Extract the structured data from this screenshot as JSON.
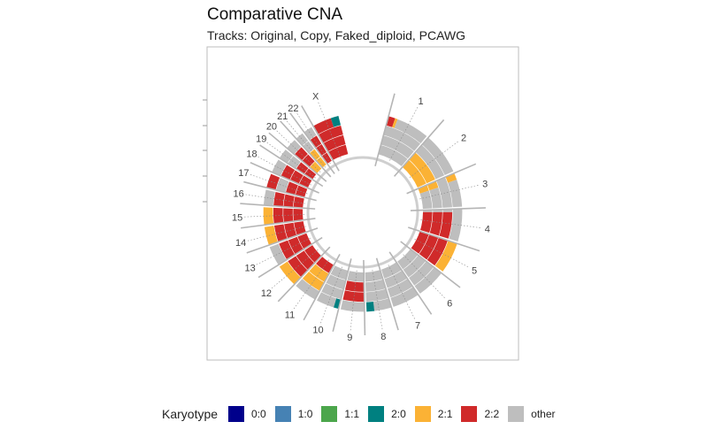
{
  "chart_data": {
    "type": "circular",
    "title": "Comparative CNA",
    "subtitle": "Tracks: Original, Copy, Faked_diploid, PCAWG",
    "tracks": [
      "Original",
      "Copy",
      "Faked_diploid",
      "PCAWG"
    ],
    "chromosomes": [
      {
        "label": "1",
        "size": 249
      },
      {
        "label": "2",
        "size": 243
      },
      {
        "label": "3",
        "size": 198
      },
      {
        "label": "4",
        "size": 191
      },
      {
        "label": "5",
        "size": 181
      },
      {
        "label": "6",
        "size": 171
      },
      {
        "label": "7",
        "size": 159
      },
      {
        "label": "8",
        "size": 145
      },
      {
        "label": "9",
        "size": 138
      },
      {
        "label": "10",
        "size": 134
      },
      {
        "label": "11",
        "size": 135
      },
      {
        "label": "12",
        "size": 133
      },
      {
        "label": "13",
        "size": 114
      },
      {
        "label": "14",
        "size": 107
      },
      {
        "label": "15",
        "size": 102
      },
      {
        "label": "16",
        "size": 90
      },
      {
        "label": "17",
        "size": 83
      },
      {
        "label": "18",
        "size": 80
      },
      {
        "label": "19",
        "size": 59
      },
      {
        "label": "20",
        "size": 64
      },
      {
        "label": "21",
        "size": 47
      },
      {
        "label": "22",
        "size": 51
      },
      {
        "label": "X",
        "size": 156
      }
    ],
    "segments": [
      {
        "track": 3,
        "chr": "1",
        "start": 0,
        "end": 40,
        "karyotype": "2:2"
      },
      {
        "track": 3,
        "chr": "1",
        "start": 40,
        "end": 55,
        "karyotype": "2:1"
      },
      {
        "track": 3,
        "chr": "1",
        "start": 55,
        "end": 249,
        "karyotype": "other"
      },
      {
        "track": 2,
        "chr": "1",
        "start": 0,
        "end": 249,
        "karyotype": "other"
      },
      {
        "track": 1,
        "chr": "1",
        "start": 0,
        "end": 249,
        "karyotype": "other"
      },
      {
        "track": 0,
        "chr": "1",
        "start": 0,
        "end": 249,
        "karyotype": "other"
      },
      {
        "track": 3,
        "chr": "2",
        "start": 0,
        "end": 243,
        "karyotype": "other"
      },
      {
        "track": 2,
        "chr": "2",
        "start": 0,
        "end": 243,
        "karyotype": "other"
      },
      {
        "track": 1,
        "chr": "2",
        "start": 0,
        "end": 243,
        "karyotype": "2:1"
      },
      {
        "track": 0,
        "chr": "2",
        "start": 0,
        "end": 243,
        "karyotype": "2:1"
      },
      {
        "track": 3,
        "chr": "3",
        "start": 0,
        "end": 40,
        "karyotype": "2:1"
      },
      {
        "track": 3,
        "chr": "3",
        "start": 40,
        "end": 198,
        "karyotype": "other"
      },
      {
        "track": 2,
        "chr": "3",
        "start": 0,
        "end": 198,
        "karyotype": "other"
      },
      {
        "track": 1,
        "chr": "3",
        "start": 0,
        "end": 50,
        "karyotype": "2:1"
      },
      {
        "track": 1,
        "chr": "3",
        "start": 50,
        "end": 198,
        "karyotype": "other"
      },
      {
        "track": 0,
        "chr": "3",
        "start": 0,
        "end": 50,
        "karyotype": "2:1"
      },
      {
        "track": 0,
        "chr": "3",
        "start": 50,
        "end": 198,
        "karyotype": "other"
      },
      {
        "track": 3,
        "chr": "4",
        "start": 0,
        "end": 191,
        "karyotype": "other"
      },
      {
        "track": 2,
        "chr": "4",
        "start": 0,
        "end": 20,
        "karyotype": "other"
      },
      {
        "track": 2,
        "chr": "4",
        "start": 20,
        "end": 191,
        "karyotype": "2:2"
      },
      {
        "track": 1,
        "chr": "4",
        "start": 0,
        "end": 20,
        "karyotype": "other"
      },
      {
        "track": 1,
        "chr": "4",
        "start": 20,
        "end": 191,
        "karyotype": "2:2"
      },
      {
        "track": 0,
        "chr": "4",
        "start": 0,
        "end": 20,
        "karyotype": "other"
      },
      {
        "track": 0,
        "chr": "4",
        "start": 20,
        "end": 191,
        "karyotype": "2:2"
      },
      {
        "track": 3,
        "chr": "5",
        "start": 0,
        "end": 181,
        "karyotype": "2:1"
      },
      {
        "track": 2,
        "chr": "5",
        "start": 0,
        "end": 181,
        "karyotype": "2:2"
      },
      {
        "track": 1,
        "chr": "5",
        "start": 0,
        "end": 181,
        "karyotype": "2:2"
      },
      {
        "track": 0,
        "chr": "5",
        "start": 0,
        "end": 181,
        "karyotype": "2:2"
      },
      {
        "track": 3,
        "chr": "6",
        "start": 0,
        "end": 171,
        "karyotype": "other"
      },
      {
        "track": 2,
        "chr": "6",
        "start": 0,
        "end": 171,
        "karyotype": "other"
      },
      {
        "track": 1,
        "chr": "6",
        "start": 0,
        "end": 171,
        "karyotype": "other"
      },
      {
        "track": 0,
        "chr": "6",
        "start": 0,
        "end": 171,
        "karyotype": "other"
      },
      {
        "track": 3,
        "chr": "7",
        "start": 0,
        "end": 159,
        "karyotype": "other"
      },
      {
        "track": 2,
        "chr": "7",
        "start": 0,
        "end": 159,
        "karyotype": "other"
      },
      {
        "track": 1,
        "chr": "7",
        "start": 0,
        "end": 159,
        "karyotype": "other"
      },
      {
        "track": 0,
        "chr": "7",
        "start": 0,
        "end": 159,
        "karyotype": "other"
      },
      {
        "track": 3,
        "chr": "8",
        "start": 0,
        "end": 100,
        "karyotype": "other"
      },
      {
        "track": 3,
        "chr": "8",
        "start": 100,
        "end": 145,
        "karyotype": "2:0"
      },
      {
        "track": 2,
        "chr": "8",
        "start": 0,
        "end": 145,
        "karyotype": "other"
      },
      {
        "track": 1,
        "chr": "8",
        "start": 0,
        "end": 145,
        "karyotype": "other"
      },
      {
        "track": 0,
        "chr": "8",
        "start": 0,
        "end": 145,
        "karyotype": "other"
      },
      {
        "track": 3,
        "chr": "9",
        "start": 0,
        "end": 138,
        "karyotype": "other"
      },
      {
        "track": 2,
        "chr": "9",
        "start": 0,
        "end": 138,
        "karyotype": "2:2"
      },
      {
        "track": 1,
        "chr": "9",
        "start": 0,
        "end": 138,
        "karyotype": "2:2"
      },
      {
        "track": 0,
        "chr": "9",
        "start": 0,
        "end": 138,
        "karyotype": "other"
      },
      {
        "track": 3,
        "chr": "10",
        "start": 0,
        "end": 30,
        "karyotype": "2:0"
      },
      {
        "track": 3,
        "chr": "10",
        "start": 30,
        "end": 134,
        "karyotype": "other"
      },
      {
        "track": 2,
        "chr": "10",
        "start": 0,
        "end": 134,
        "karyotype": "other"
      },
      {
        "track": 1,
        "chr": "10",
        "start": 0,
        "end": 134,
        "karyotype": "other"
      },
      {
        "track": 0,
        "chr": "10",
        "start": 0,
        "end": 134,
        "karyotype": "other"
      },
      {
        "track": 3,
        "chr": "11",
        "start": 0,
        "end": 135,
        "karyotype": "other"
      },
      {
        "track": 2,
        "chr": "11",
        "start": 0,
        "end": 135,
        "karyotype": "2:1"
      },
      {
        "track": 1,
        "chr": "11",
        "start": 0,
        "end": 135,
        "karyotype": "2:1"
      },
      {
        "track": 0,
        "chr": "11",
        "start": 0,
        "end": 135,
        "karyotype": "2:2"
      },
      {
        "track": 3,
        "chr": "12",
        "start": 0,
        "end": 133,
        "karyotype": "2:1"
      },
      {
        "track": 2,
        "chr": "12",
        "start": 0,
        "end": 133,
        "karyotype": "2:2"
      },
      {
        "track": 1,
        "chr": "12",
        "start": 0,
        "end": 133,
        "karyotype": "2:2"
      },
      {
        "track": 0,
        "chr": "12",
        "start": 0,
        "end": 133,
        "karyotype": "2:2"
      },
      {
        "track": 3,
        "chr": "13",
        "start": 0,
        "end": 114,
        "karyotype": "other"
      },
      {
        "track": 2,
        "chr": "13",
        "start": 0,
        "end": 114,
        "karyotype": "2:2"
      },
      {
        "track": 1,
        "chr": "13",
        "start": 0,
        "end": 114,
        "karyotype": "2:2"
      },
      {
        "track": 0,
        "chr": "13",
        "start": 0,
        "end": 114,
        "karyotype": "2:2"
      },
      {
        "track": 3,
        "chr": "14",
        "start": 0,
        "end": 107,
        "karyotype": "2:1"
      },
      {
        "track": 2,
        "chr": "14",
        "start": 0,
        "end": 107,
        "karyotype": "2:2"
      },
      {
        "track": 1,
        "chr": "14",
        "start": 0,
        "end": 107,
        "karyotype": "2:2"
      },
      {
        "track": 0,
        "chr": "14",
        "start": 0,
        "end": 107,
        "karyotype": "2:2"
      },
      {
        "track": 3,
        "chr": "15",
        "start": 0,
        "end": 102,
        "karyotype": "2:1"
      },
      {
        "track": 2,
        "chr": "15",
        "start": 0,
        "end": 102,
        "karyotype": "2:2"
      },
      {
        "track": 1,
        "chr": "15",
        "start": 0,
        "end": 102,
        "karyotype": "2:2"
      },
      {
        "track": 0,
        "chr": "15",
        "start": 0,
        "end": 102,
        "karyotype": "2:2"
      },
      {
        "track": 3,
        "chr": "16",
        "start": 0,
        "end": 90,
        "karyotype": "other"
      },
      {
        "track": 2,
        "chr": "16",
        "start": 0,
        "end": 90,
        "karyotype": "2:2"
      },
      {
        "track": 1,
        "chr": "16",
        "start": 0,
        "end": 90,
        "karyotype": "2:2"
      },
      {
        "track": 0,
        "chr": "16",
        "start": 0,
        "end": 90,
        "karyotype": "2:2"
      },
      {
        "track": 3,
        "chr": "17",
        "start": 0,
        "end": 83,
        "karyotype": "2:2"
      },
      {
        "track": 2,
        "chr": "17",
        "start": 0,
        "end": 83,
        "karyotype": "other"
      },
      {
        "track": 1,
        "chr": "17",
        "start": 0,
        "end": 83,
        "karyotype": "2:2"
      },
      {
        "track": 0,
        "chr": "17",
        "start": 0,
        "end": 83,
        "karyotype": "2:2"
      },
      {
        "track": 3,
        "chr": "18",
        "start": 0,
        "end": 80,
        "karyotype": "other"
      },
      {
        "track": 2,
        "chr": "18",
        "start": 0,
        "end": 80,
        "karyotype": "2:2"
      },
      {
        "track": 1,
        "chr": "18",
        "start": 0,
        "end": 80,
        "karyotype": "2:2"
      },
      {
        "track": 0,
        "chr": "18",
        "start": 0,
        "end": 80,
        "karyotype": "2:2"
      },
      {
        "track": 3,
        "chr": "19",
        "start": 0,
        "end": 59,
        "karyotype": "other"
      },
      {
        "track": 2,
        "chr": "19",
        "start": 0,
        "end": 59,
        "karyotype": "other"
      },
      {
        "track": 1,
        "chr": "19",
        "start": 0,
        "end": 59,
        "karyotype": "2:2"
      },
      {
        "track": 0,
        "chr": "19",
        "start": 0,
        "end": 59,
        "karyotype": "2:2"
      },
      {
        "track": 3,
        "chr": "20",
        "start": 0,
        "end": 64,
        "karyotype": "other"
      },
      {
        "track": 2,
        "chr": "20",
        "start": 0,
        "end": 64,
        "karyotype": "2:2"
      },
      {
        "track": 1,
        "chr": "20",
        "start": 0,
        "end": 64,
        "karyotype": "2:2"
      },
      {
        "track": 0,
        "chr": "20",
        "start": 0,
        "end": 64,
        "karyotype": "2:1"
      },
      {
        "track": 3,
        "chr": "21",
        "start": 0,
        "end": 47,
        "karyotype": "other"
      },
      {
        "track": 2,
        "chr": "21",
        "start": 0,
        "end": 47,
        "karyotype": "other"
      },
      {
        "track": 1,
        "chr": "21",
        "start": 0,
        "end": 47,
        "karyotype": "2:1"
      },
      {
        "track": 0,
        "chr": "21",
        "start": 0,
        "end": 47,
        "karyotype": "2:1"
      },
      {
        "track": 3,
        "chr": "22",
        "start": 0,
        "end": 51,
        "karyotype": "other"
      },
      {
        "track": 2,
        "chr": "22",
        "start": 0,
        "end": 51,
        "karyotype": "2:2"
      },
      {
        "track": 1,
        "chr": "22",
        "start": 0,
        "end": 51,
        "karyotype": "2:2"
      },
      {
        "track": 0,
        "chr": "22",
        "start": 0,
        "end": 51,
        "karyotype": "2:2"
      },
      {
        "track": 3,
        "chr": "X",
        "start": 0,
        "end": 110,
        "karyotype": "2:2"
      },
      {
        "track": 3,
        "chr": "X",
        "start": 110,
        "end": 156,
        "karyotype": "2:0"
      },
      {
        "track": 2,
        "chr": "X",
        "start": 0,
        "end": 156,
        "karyotype": "2:2"
      },
      {
        "track": 1,
        "chr": "X",
        "start": 0,
        "end": 156,
        "karyotype": "2:2"
      },
      {
        "track": 0,
        "chr": "X",
        "start": 0,
        "end": 156,
        "karyotype": "2:2"
      }
    ],
    "legend": {
      "title": "Karyotype",
      "position": "bottom",
      "items": [
        {
          "label": "0:0",
          "color": "#00008b"
        },
        {
          "label": "1:0",
          "color": "#4682b4"
        },
        {
          "label": "1:1",
          "color": "#4ca64c"
        },
        {
          "label": "2:0",
          "color": "#008080"
        },
        {
          "label": "2:1",
          "color": "#fbb235"
        },
        {
          "label": "2:2",
          "color": "#d02a2a"
        },
        {
          "label": "other",
          "color": "#bebebe"
        }
      ]
    },
    "grid": false
  }
}
